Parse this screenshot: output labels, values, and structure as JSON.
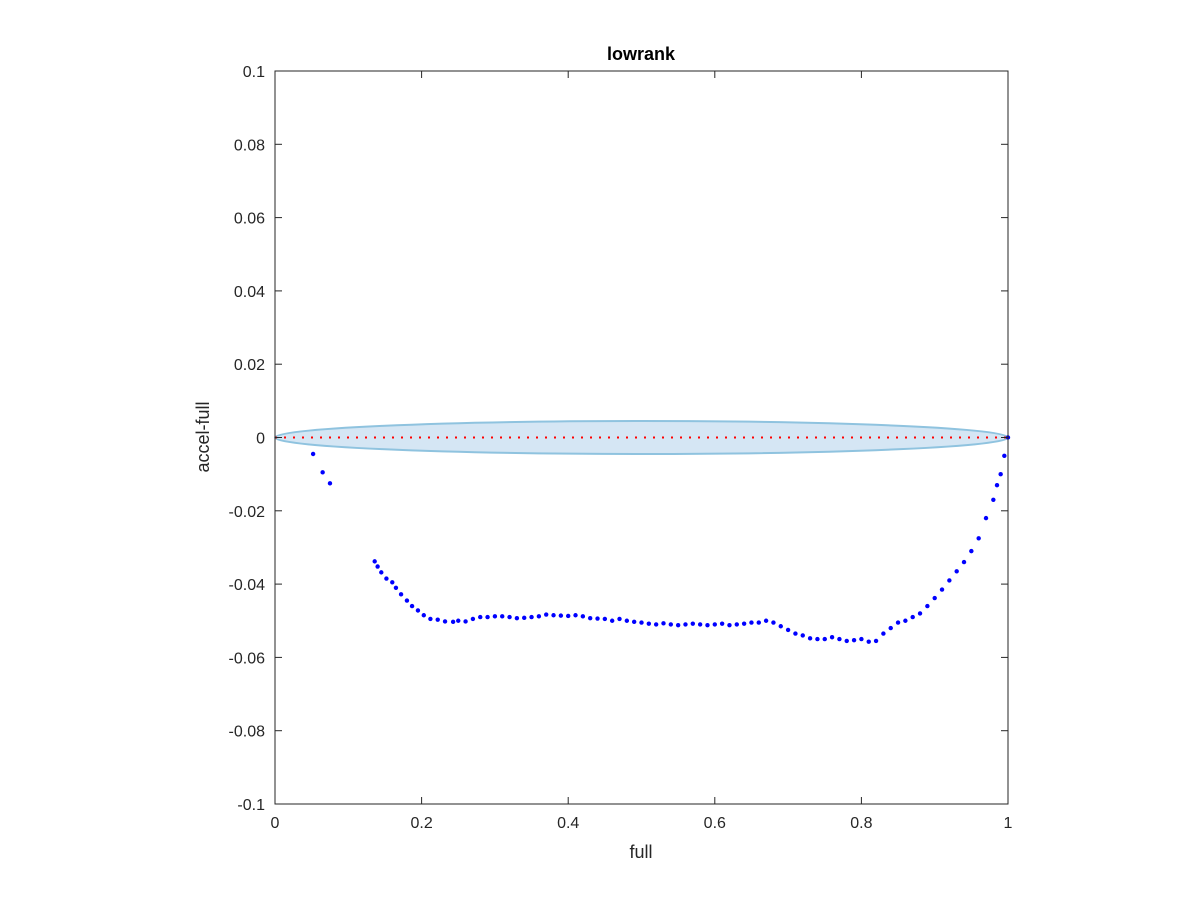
{
  "chart_data": {
    "type": "scatter",
    "title": "lowrank",
    "xlabel": "full",
    "ylabel": "accel-full",
    "xlim": [
      0,
      1
    ],
    "ylim": [
      -0.1,
      0.1
    ],
    "xticks": [
      0,
      0.2,
      0.4,
      0.6,
      0.8,
      1
    ],
    "xtick_labels": [
      "0",
      "0.2",
      "0.4",
      "0.6",
      "0.8",
      "1"
    ],
    "yticks": [
      0.1,
      0.08,
      0.06,
      0.04,
      0.02,
      0,
      -0.02,
      -0.04,
      -0.06,
      -0.08,
      -0.1
    ],
    "ytick_labels": [
      "0.1",
      "0.08",
      "0.06",
      "0.04",
      "0.02",
      "0",
      "-0.02",
      "-0.04",
      "-0.06",
      "-0.08",
      "-0.1"
    ],
    "grid": false,
    "box": true,
    "colors": {
      "points": "#0000ff",
      "reference_line": "#ff0000",
      "band_fill": "#d5e6f4",
      "band_edge": "#8fc3df"
    },
    "reference_line": {
      "y": 0,
      "style": "dotted",
      "x_range": [
        0,
        1
      ]
    },
    "band": {
      "shape": "ellipse",
      "x_range": [
        0,
        1
      ],
      "center_y": 0,
      "half_height": 0.0045
    },
    "series": [
      {
        "x": [
          0.052,
          0.065,
          0.075,
          0.136,
          0.14,
          0.145,
          0.152,
          0.16,
          0.165,
          0.172,
          0.18,
          0.187,
          0.195,
          0.203,
          0.212,
          0.222,
          0.232,
          0.243,
          0.25,
          0.26,
          0.27,
          0.28,
          0.29,
          0.3,
          0.31,
          0.32,
          0.33,
          0.34,
          0.35,
          0.36,
          0.37,
          0.38,
          0.39,
          0.4,
          0.41,
          0.42,
          0.43,
          0.44,
          0.45,
          0.46,
          0.47,
          0.48,
          0.49,
          0.5,
          0.51,
          0.52,
          0.53,
          0.54,
          0.55,
          0.56,
          0.57,
          0.58,
          0.59,
          0.6,
          0.61,
          0.62,
          0.63,
          0.64,
          0.65,
          0.66,
          0.67,
          0.68,
          0.69,
          0.7,
          0.71,
          0.72,
          0.73,
          0.74,
          0.75,
          0.76,
          0.77,
          0.78,
          0.79,
          0.8,
          0.81,
          0.82,
          0.83,
          0.84,
          0.85,
          0.86,
          0.87,
          0.88,
          0.89,
          0.9,
          0.91,
          0.92,
          0.93,
          0.94,
          0.95,
          0.96,
          0.97,
          0.98,
          0.985,
          0.99,
          0.995,
          1.0
        ],
        "y": [
          -0.0045,
          -0.0095,
          -0.0125,
          -0.0338,
          -0.0352,
          -0.0368,
          -0.0385,
          -0.0395,
          -0.041,
          -0.0428,
          -0.0445,
          -0.046,
          -0.0472,
          -0.0485,
          -0.0495,
          -0.0497,
          -0.0502,
          -0.0503,
          -0.05,
          -0.0502,
          -0.0495,
          -0.049,
          -0.049,
          -0.0488,
          -0.0488,
          -0.049,
          -0.0493,
          -0.0492,
          -0.049,
          -0.0488,
          -0.0483,
          -0.0485,
          -0.0486,
          -0.0487,
          -0.0485,
          -0.0488,
          -0.0493,
          -0.0494,
          -0.0495,
          -0.05,
          -0.0495,
          -0.05,
          -0.0503,
          -0.0505,
          -0.0508,
          -0.051,
          -0.0507,
          -0.051,
          -0.0512,
          -0.051,
          -0.0508,
          -0.051,
          -0.0512,
          -0.051,
          -0.0508,
          -0.0512,
          -0.051,
          -0.0508,
          -0.0505,
          -0.0505,
          -0.05,
          -0.0505,
          -0.0515,
          -0.0525,
          -0.0535,
          -0.054,
          -0.0548,
          -0.055,
          -0.055,
          -0.0545,
          -0.055,
          -0.0555,
          -0.0553,
          -0.055,
          -0.0557,
          -0.0555,
          -0.0535,
          -0.052,
          -0.0505,
          -0.05,
          -0.049,
          -0.048,
          -0.046,
          -0.0438,
          -0.0415,
          -0.039,
          -0.0365,
          -0.034,
          -0.031,
          -0.0275,
          -0.022,
          -0.017,
          -0.013,
          -0.01,
          -0.005,
          0.0
        ]
      }
    ]
  }
}
